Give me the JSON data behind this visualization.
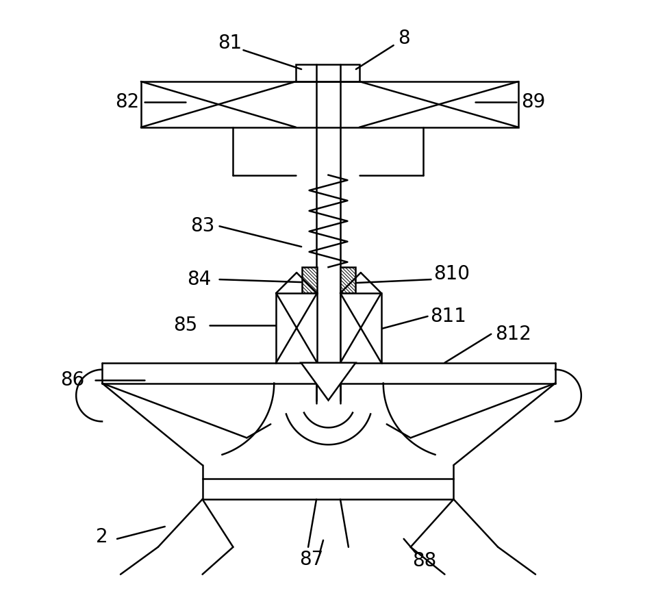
{
  "bg_color": "#ffffff",
  "line_color": "#000000",
  "lw": 1.8,
  "fig_width": 9.58,
  "fig_height": 8.63
}
